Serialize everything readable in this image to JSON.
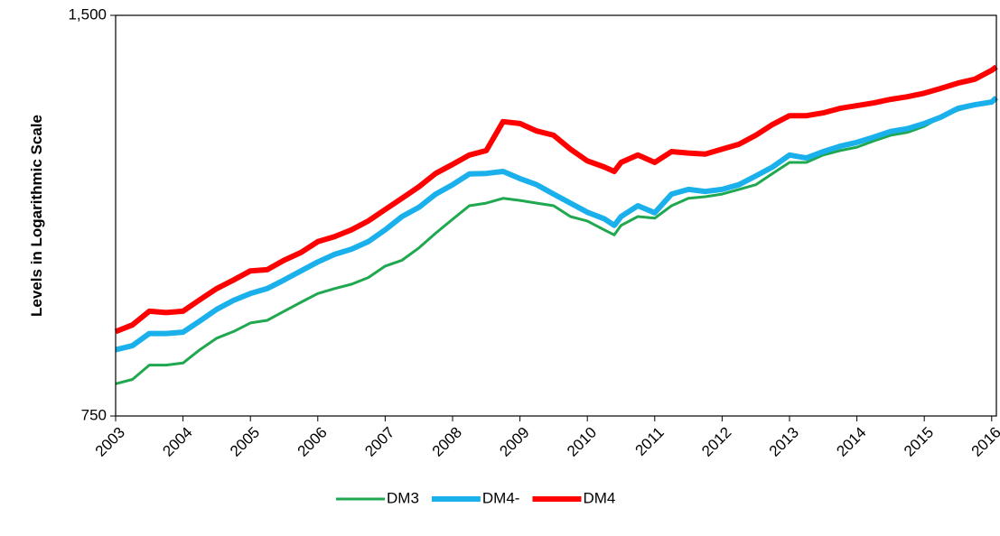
{
  "chart_data": {
    "type": "line",
    "y_label": "Levels in Logarithmic Scale",
    "y_log": true,
    "ylim": [
      750,
      1500
    ],
    "yticks": [
      750,
      {
        "value": 1500,
        "label": "1,500"
      }
    ],
    "xlim": [
      2003,
      2016.07
    ],
    "xticks": [
      2003,
      2004,
      2005,
      2006,
      2007,
      2008,
      2009,
      2010,
      2011,
      2012,
      2013,
      2014,
      2015,
      2016
    ],
    "legend": "bottom",
    "x": [
      2003,
      2003.25,
      2003.5,
      2003.75,
      2004,
      2004.25,
      2004.5,
      2004.75,
      2005,
      2005.25,
      2005.5,
      2005.75,
      2006,
      2006.25,
      2006.5,
      2006.75,
      2007,
      2007.25,
      2007.5,
      2007.75,
      2008,
      2008.25,
      2008.5,
      2008.75,
      2009,
      2009.25,
      2009.5,
      2009.75,
      2010,
      2010.25,
      2010.4,
      2010.5,
      2010.75,
      2011,
      2011.25,
      2011.5,
      2011.75,
      2012,
      2012.25,
      2012.5,
      2012.75,
      2013,
      2013.25,
      2013.5,
      2013.75,
      2014,
      2014.25,
      2014.5,
      2014.75,
      2015,
      2015.25,
      2015.5,
      2015.75,
      2016,
      2016.07
    ],
    "series": [
      {
        "name": "DM3",
        "color": "#1fa84f",
        "width": 3,
        "values": [
          793,
          799,
          819,
          819,
          822,
          841,
          858,
          868,
          881,
          885,
          899,
          913,
          927,
          935,
          942,
          953,
          972,
          982,
          1003,
          1029,
          1054,
          1079,
          1084,
          1093,
          1089,
          1084,
          1079,
          1059,
          1051,
          1035,
          1026,
          1043,
          1059,
          1056,
          1079,
          1093,
          1096,
          1101,
          1110,
          1119,
          1141,
          1163,
          1163,
          1178,
          1187,
          1194,
          1207,
          1219,
          1225,
          1238,
          1258,
          1273,
          1283,
          1293,
          1297
        ]
      },
      {
        "name": "DM4-",
        "color": "#1ab0ec",
        "width": 6,
        "values": [
          841,
          847,
          865,
          865,
          867,
          884,
          902,
          916,
          927,
          935,
          949,
          964,
          979,
          992,
          1001,
          1014,
          1035,
          1059,
          1076,
          1101,
          1119,
          1140,
          1141,
          1145,
          1131,
          1119,
          1101,
          1084,
          1067,
          1055,
          1043,
          1059,
          1079,
          1066,
          1101,
          1110,
          1106,
          1110,
          1119,
          1136,
          1154,
          1178,
          1172,
          1185,
          1196,
          1204,
          1215,
          1227,
          1233,
          1244,
          1258,
          1277,
          1285,
          1291,
          1301
        ]
      },
      {
        "name": "DM4",
        "color": "#ff0000",
        "width": 6,
        "values": [
          868,
          878,
          899,
          897,
          899,
          917,
          935,
          949,
          964,
          966,
          982,
          995,
          1014,
          1023,
          1035,
          1051,
          1072,
          1093,
          1115,
          1141,
          1159,
          1178,
          1187,
          1248,
          1244,
          1228,
          1219,
          1190,
          1166,
          1154,
          1145,
          1163,
          1178,
          1163,
          1185,
          1182,
          1180,
          1190,
          1200,
          1219,
          1242,
          1261,
          1261,
          1267,
          1277,
          1283,
          1289,
          1297,
          1303,
          1311,
          1322,
          1334,
          1343,
          1364,
          1372
        ]
      }
    ]
  }
}
